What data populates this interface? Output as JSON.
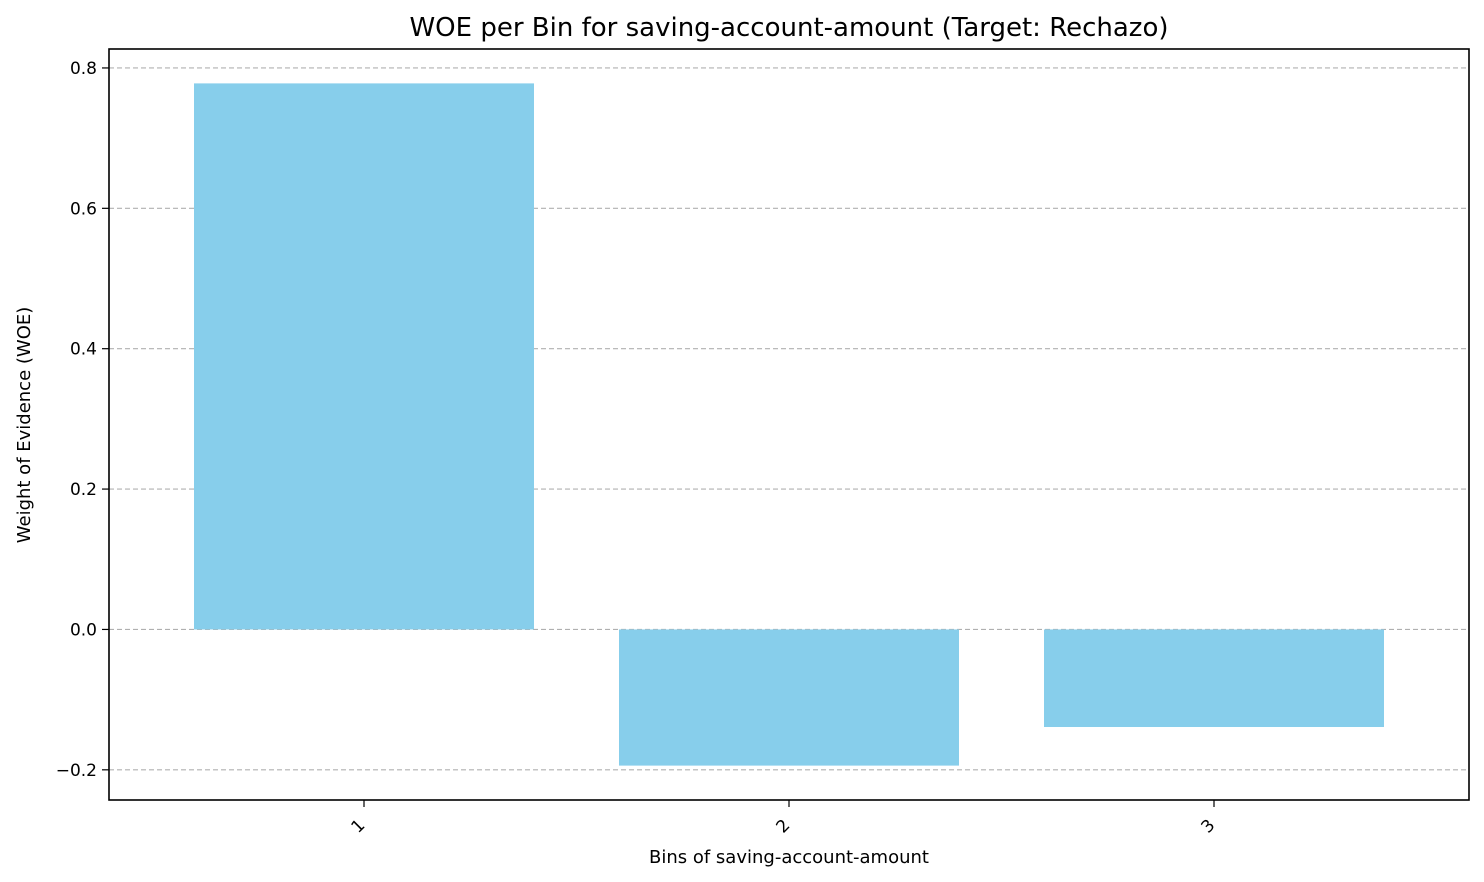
{
  "chart_data": {
    "type": "bar",
    "title": "WOE per Bin for saving-account-amount (Target: Rechazo)",
    "xlabel": "Bins of saving-account-amount",
    "ylabel": "Weight of Evidence (WOE)",
    "categories": [
      "1",
      "2",
      "3"
    ],
    "values": [
      0.778,
      -0.194,
      -0.139
    ],
    "ylim": [
      -0.243,
      0.827
    ],
    "yticks": [
      -0.2,
      0.0,
      0.2,
      0.4,
      0.6,
      0.8
    ],
    "ytick_labels": [
      "−0.2",
      "0.0",
      "0.2",
      "0.4",
      "0.6",
      "0.8"
    ],
    "grid": "y, dashed",
    "legend": "none",
    "bar_color": "#87CEEB"
  }
}
